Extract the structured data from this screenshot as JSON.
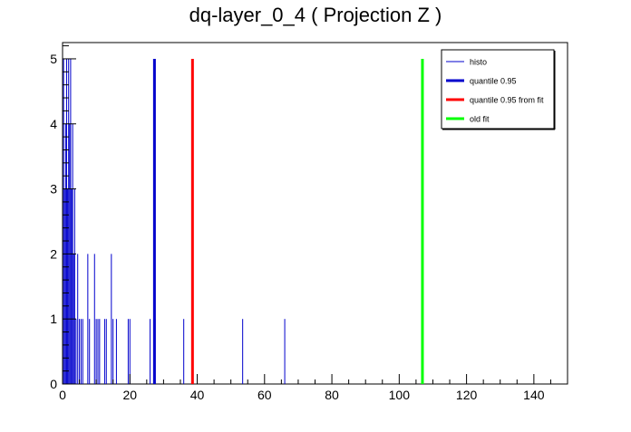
{
  "chart_data": {
    "type": "bar",
    "title": "dq-layer_0_4 ( Projection Z )",
    "xlabel": "",
    "ylabel": "",
    "xlim": [
      0,
      150
    ],
    "ylim": [
      0,
      5.25
    ],
    "x_ticks": [
      0,
      20,
      40,
      60,
      80,
      100,
      120,
      140
    ],
    "y_ticks": [
      0,
      1,
      2,
      3,
      4,
      5
    ],
    "grid": false,
    "legend_position": "top-right",
    "histogram": {
      "name": "histo",
      "color": "#0000cc",
      "bins": [
        {
          "x": 0.3,
          "y": 5
        },
        {
          "x": 0.6,
          "y": 3
        },
        {
          "x": 0.9,
          "y": 4
        },
        {
          "x": 1.2,
          "y": 5
        },
        {
          "x": 1.5,
          "y": 3
        },
        {
          "x": 1.8,
          "y": 5
        },
        {
          "x": 2.1,
          "y": 4
        },
        {
          "x": 2.4,
          "y": 5
        },
        {
          "x": 2.7,
          "y": 3
        },
        {
          "x": 3.0,
          "y": 4
        },
        {
          "x": 3.3,
          "y": 2
        },
        {
          "x": 3.6,
          "y": 3
        },
        {
          "x": 4.0,
          "y": 1
        },
        {
          "x": 4.5,
          "y": 2
        },
        {
          "x": 5.0,
          "y": 1
        },
        {
          "x": 5.5,
          "y": 1
        },
        {
          "x": 6.0,
          "y": 1
        },
        {
          "x": 7.5,
          "y": 2
        },
        {
          "x": 8.0,
          "y": 1
        },
        {
          "x": 9.5,
          "y": 2
        },
        {
          "x": 10.0,
          "y": 1
        },
        {
          "x": 10.5,
          "y": 1
        },
        {
          "x": 11.0,
          "y": 1
        },
        {
          "x": 12.5,
          "y": 1
        },
        {
          "x": 13.0,
          "y": 1
        },
        {
          "x": 14.5,
          "y": 2
        },
        {
          "x": 15.0,
          "y": 1
        },
        {
          "x": 16.0,
          "y": 1
        },
        {
          "x": 19.5,
          "y": 1
        },
        {
          "x": 20.0,
          "y": 1
        },
        {
          "x": 26.0,
          "y": 1
        },
        {
          "x": 27.5,
          "y": 1
        },
        {
          "x": 36.0,
          "y": 1
        },
        {
          "x": 53.5,
          "y": 1
        },
        {
          "x": 66.0,
          "y": 1
        }
      ]
    },
    "lines": [
      {
        "name": "quantile 0.95",
        "x": 27.3,
        "height": 5,
        "color": "#0000cc"
      },
      {
        "name": "quantile 0.95 from fit",
        "x": 38.6,
        "height": 5,
        "color": "#ff0000"
      },
      {
        "name": "old fit",
        "x": 106.9,
        "height": 5,
        "color": "#00ff00"
      }
    ],
    "legend": [
      {
        "label": "histo",
        "color": "#0000cc",
        "weight": "thin"
      },
      {
        "label": "quantile 0.95",
        "color": "#0000cc",
        "weight": "thick"
      },
      {
        "label": "quantile 0.95 from fit",
        "color": "#ff0000",
        "weight": "thick"
      },
      {
        "label": "old fit",
        "color": "#00ff00",
        "weight": "thick"
      }
    ]
  }
}
